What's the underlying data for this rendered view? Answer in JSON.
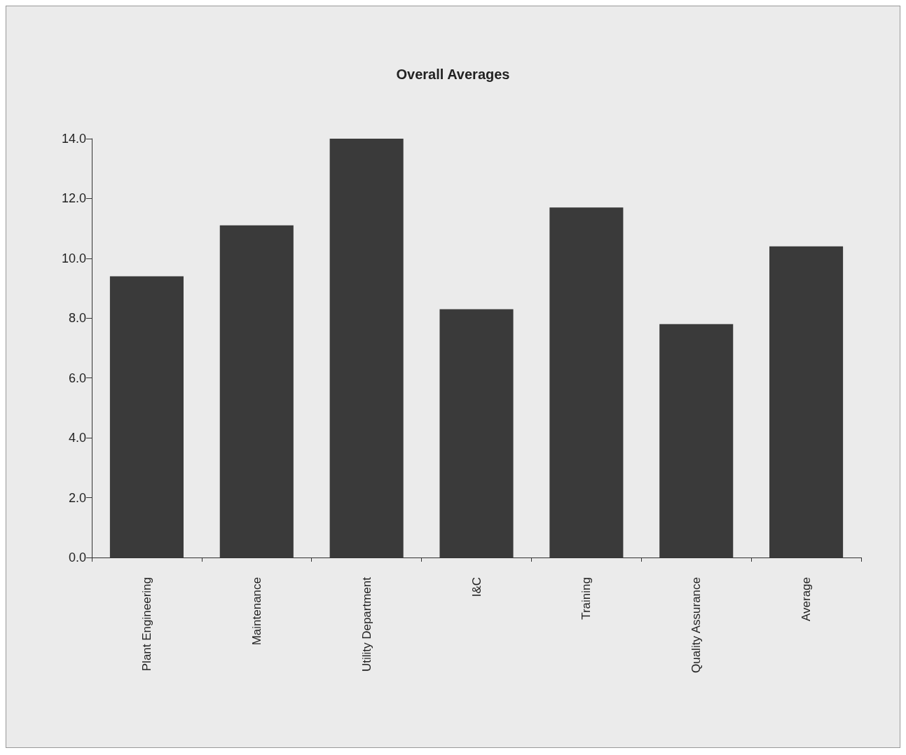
{
  "chart_data": {
    "type": "bar",
    "title": "Overall Averages",
    "categories": [
      "Plant Engineering",
      "Maintenance",
      "Utility Department",
      "I&C",
      "Training",
      "Quality Assurance",
      "Average"
    ],
    "values": [
      9.4,
      11.1,
      14.0,
      8.3,
      11.7,
      7.8,
      10.4
    ],
    "color": "#3a3a3a",
    "ylim": [
      0,
      14
    ],
    "yticks": [
      {
        "value": 0,
        "label": "0.0"
      },
      {
        "value": 2,
        "label": "2.0"
      },
      {
        "value": 4,
        "label": "4.0"
      },
      {
        "value": 6,
        "label": "6.0"
      },
      {
        "value": 8,
        "label": "8.0"
      },
      {
        "value": 10,
        "label": "10.0"
      },
      {
        "value": 12,
        "label": "12.0"
      },
      {
        "value": 14,
        "label": "14.0"
      }
    ],
    "grid": false
  }
}
